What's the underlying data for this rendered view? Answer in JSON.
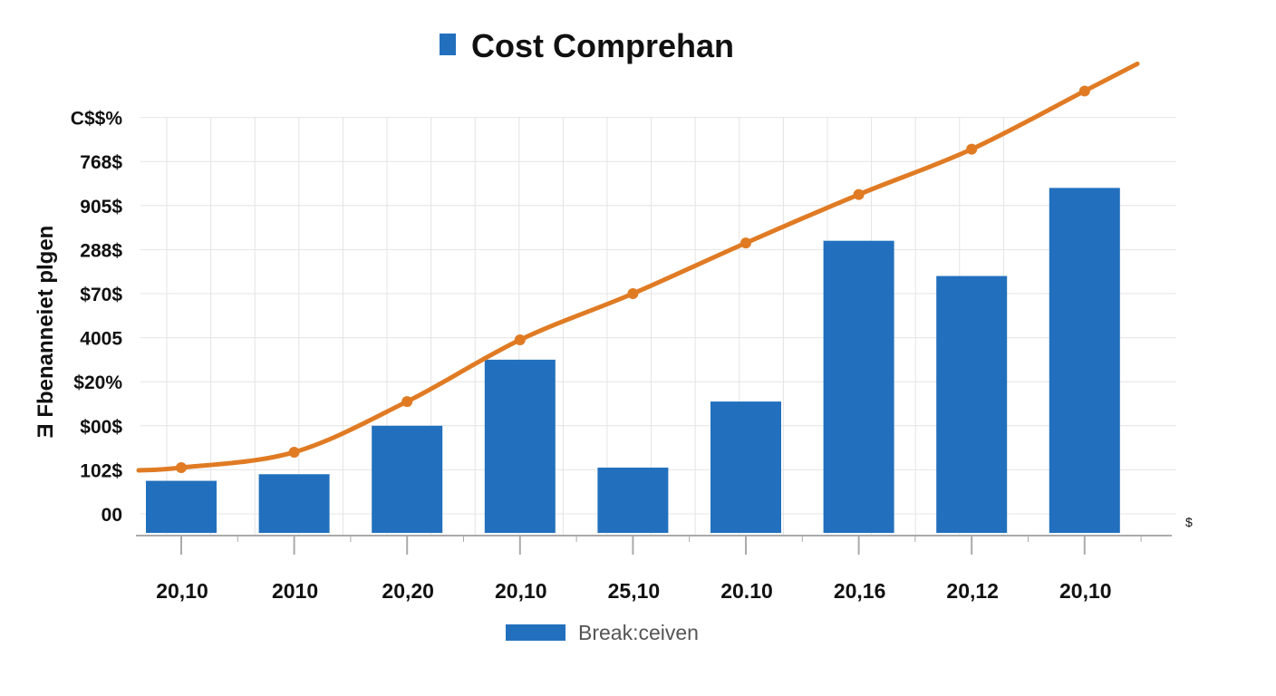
{
  "colors": {
    "bars": "#2270bd",
    "line": "#e07b24",
    "grid": "#e4e4e4",
    "axis": "#aaaaaa"
  },
  "chart_data": {
    "type": "bar",
    "title": "Cost Comprehan",
    "ylabel": "Ǝ Fbenanneiet plgen",
    "categories": [
      "20,10",
      "2010",
      "20,20",
      "20,10",
      "25,10",
      "20.10",
      "20,16",
      "20,12",
      "20,10"
    ],
    "y_tick_labels": [
      "00",
      "102$",
      "$00$",
      "$20%",
      "4005",
      "$70$",
      "288$",
      "905$",
      "768$",
      "C$$%"
    ],
    "ylim": [
      0,
      9
    ],
    "series": [
      {
        "name": "Break:ceiven",
        "type": "bar",
        "values": [
          0.75,
          0.9,
          2.0,
          3.5,
          1.05,
          2.55,
          6.2,
          5.4,
          7.4
        ]
      },
      {
        "type": "line",
        "values": [
          1.05,
          1.4,
          2.55,
          3.95,
          5.0,
          6.15,
          7.25,
          8.28,
          9.6
        ]
      }
    ],
    "right_axis_label": "$",
    "grid": true,
    "legend": "bottom"
  }
}
